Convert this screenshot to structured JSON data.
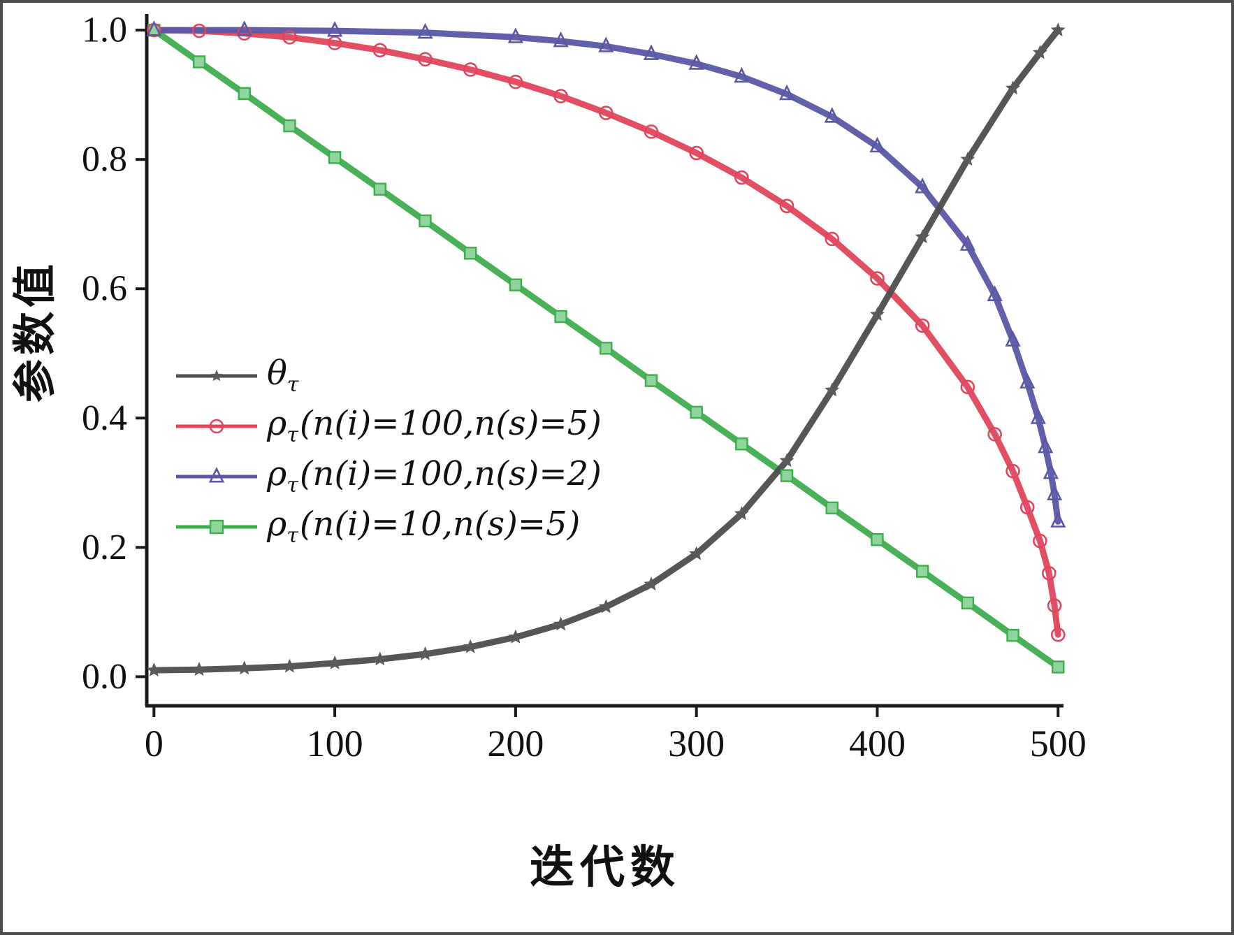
{
  "figure": {
    "background": "#ffffff",
    "frame_color": "#4d4d4d"
  },
  "chart_data": {
    "type": "line",
    "title": "",
    "xlabel": "迭代数",
    "ylabel": "参数值",
    "xlim": [
      0,
      500
    ],
    "ylim": [
      0.0,
      1.0
    ],
    "grid": false,
    "legend_position": "inside-left-middle",
    "x_ticks": {
      "values": [
        0,
        100,
        200,
        300,
        400,
        500
      ],
      "labels": [
        "0",
        "100",
        "200",
        "300",
        "400",
        "500"
      ]
    },
    "y_ticks": {
      "values": [
        0.0,
        0.2,
        0.4,
        0.6,
        0.8,
        1.0
      ],
      "labels": [
        "0.0",
        "0.2",
        "0.4",
        "0.6",
        "0.8",
        "1.0"
      ]
    },
    "axis_color": "#1a1a1a",
    "series": [
      {
        "name": "theta_tau",
        "marker": "star",
        "color": "#4d4d4d",
        "marker_fill": "#5a5a5a",
        "x": [
          0,
          25,
          50,
          75,
          100,
          125,
          150,
          175,
          200,
          225,
          250,
          275,
          300,
          325,
          350,
          375,
          400,
          425,
          450,
          475,
          490,
          500
        ],
        "y": [
          0.01,
          0.011,
          0.013,
          0.016,
          0.021,
          0.027,
          0.035,
          0.046,
          0.061,
          0.081,
          0.108,
          0.143,
          0.19,
          0.252,
          0.334,
          0.443,
          0.56,
          0.68,
          0.8,
          0.91,
          0.965,
          1.0
        ]
      },
      {
        "name": "rho_tau_ni100_ns5",
        "marker": "circle",
        "color": "#e0455c",
        "marker_fill": "none",
        "x": [
          0,
          25,
          50,
          75,
          100,
          125,
          150,
          175,
          200,
          225,
          250,
          275,
          300,
          325,
          350,
          375,
          400,
          425,
          450,
          465,
          475,
          483,
          490,
          495,
          498,
          500
        ],
        "y": [
          1.0,
          0.999,
          0.995,
          0.989,
          0.98,
          0.969,
          0.955,
          0.939,
          0.92,
          0.898,
          0.872,
          0.843,
          0.81,
          0.772,
          0.728,
          0.677,
          0.616,
          0.543,
          0.448,
          0.375,
          0.318,
          0.262,
          0.21,
          0.16,
          0.11,
          0.065
        ]
      },
      {
        "name": "rho_tau_ni100_ns2",
        "marker": "triangle",
        "color": "#5b57a6",
        "marker_fill": "none",
        "x": [
          0,
          50,
          100,
          150,
          200,
          225,
          250,
          275,
          300,
          325,
          350,
          375,
          400,
          425,
          450,
          465,
          475,
          483,
          489,
          493,
          496,
          498,
          500
        ],
        "y": [
          1.0,
          1.0,
          0.999,
          0.996,
          0.989,
          0.983,
          0.975,
          0.963,
          0.948,
          0.928,
          0.901,
          0.866,
          0.82,
          0.757,
          0.668,
          0.59,
          0.52,
          0.455,
          0.4,
          0.355,
          0.315,
          0.282,
          0.24
        ]
      },
      {
        "name": "rho_tau_ni10_ns5",
        "marker": "square",
        "color": "#3fad4e",
        "marker_fill": "#8ed69b",
        "x": [
          0,
          25,
          50,
          75,
          100,
          125,
          150,
          175,
          200,
          225,
          250,
          275,
          300,
          325,
          350,
          375,
          400,
          425,
          450,
          475,
          500
        ],
        "y": [
          1.0,
          0.951,
          0.902,
          0.852,
          0.803,
          0.754,
          0.705,
          0.655,
          0.606,
          0.557,
          0.508,
          0.458,
          0.409,
          0.36,
          0.311,
          0.261,
          0.212,
          0.163,
          0.114,
          0.064,
          0.015
        ]
      }
    ]
  },
  "legend": {
    "items": [
      {
        "symbol": "θ",
        "subscript": "τ",
        "detail": ""
      },
      {
        "symbol": "ρ",
        "subscript": "τ",
        "detail": "(n(i)=100,n(s)=5)"
      },
      {
        "symbol": "ρ",
        "subscript": "τ",
        "detail": "(n(i)=100,n(s)=2)"
      },
      {
        "symbol": "ρ",
        "subscript": "τ",
        "detail": "(n(i)=10,n(s)=5)"
      }
    ]
  }
}
